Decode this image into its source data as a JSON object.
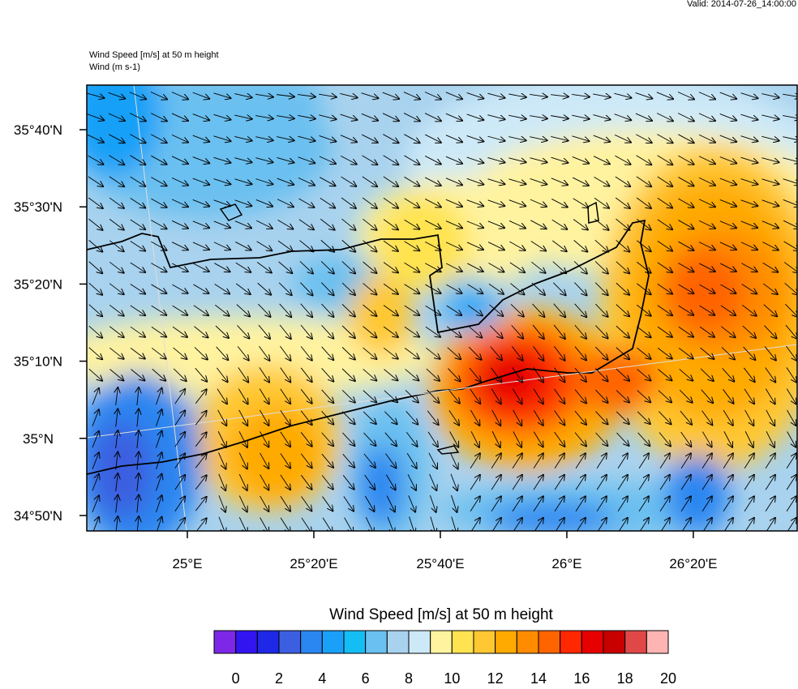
{
  "map": {
    "valid": "Valid: 2014-07-26_14:00:00",
    "title_lines": [
      "Wind Speed [m/s] at 50 m height",
      "Wind   (m s-1)"
    ],
    "lon_lim": [
      24.735,
      26.607
    ],
    "lat_lim": [
      34.8,
      35.763
    ],
    "lon_ticks": [
      {
        "value": 25,
        "label": "25°E"
      },
      {
        "value": 25.3333,
        "label": "25°20'E"
      },
      {
        "value": 25.6667,
        "label": "25°40'E"
      },
      {
        "value": 26,
        "label": "26°E"
      },
      {
        "value": 26.3333,
        "label": "26°20'E"
      }
    ],
    "lat_ticks": [
      {
        "value": 34.8333,
        "label": "34°50'N"
      },
      {
        "value": 35,
        "label": "35°N"
      },
      {
        "value": 35.1667,
        "label": "35°10'N"
      },
      {
        "value": 35.3333,
        "label": "35°20'N"
      },
      {
        "value": 35.5,
        "label": "35°30'N"
      },
      {
        "value": 35.6667,
        "label": "35°40'N"
      }
    ],
    "colorbar": {
      "title": "Wind Speed [m/s] at 50 m height",
      "lim": [
        -1,
        20
      ],
      "colors": [
        "#7d28e6",
        "#3214f0",
        "#1e28e6",
        "#3b5fe0",
        "#2a86f0",
        "#19a0f8",
        "#14bef5",
        "#6ac0f0",
        "#a8d2ee",
        "#cde9f8",
        "#fff3a0",
        "#ffe350",
        "#ffc832",
        "#ffaa00",
        "#ff8c00",
        "#ff6400",
        "#ff2800",
        "#e60000",
        "#c80000",
        "#e04848",
        "#ffb4b4"
      ],
      "ticks": [
        0,
        2,
        4,
        6,
        8,
        10,
        12,
        14,
        16,
        18,
        20
      ]
    }
  }
}
